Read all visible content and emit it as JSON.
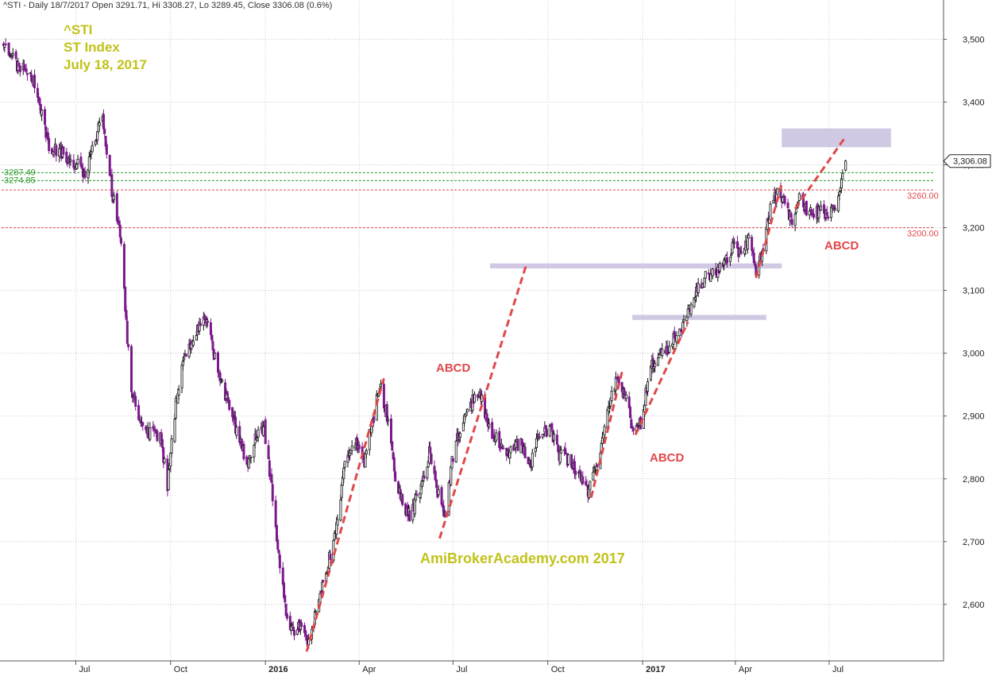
{
  "header": {
    "text": "^STI - Daily 18/7/2017 Open 3291.71, Hi 3308.27, Lo 3289.45, Close 3306.08 (0.6%)"
  },
  "title_block": {
    "line1": "^STI",
    "line2": "ST Index",
    "line3": "July 18, 2017"
  },
  "watermark": "AmiBrokerAcademy.com  2017",
  "colors": {
    "up": "#111111",
    "down": "#7a1a8a",
    "dashed_trend": "#e0484a",
    "zone": "#cfc6e3",
    "green_level": "#2a9a2a",
    "red_level": "#e0484a",
    "grid": "#c8c8c8"
  },
  "chart_data": {
    "type": "candlestick",
    "ylim": [
      2510,
      3560
    ],
    "yticks": [
      2600,
      2700,
      2800,
      2900,
      3000,
      3100,
      3200,
      3300,
      3400,
      3500
    ],
    "ytick_labels": [
      "2,600",
      "2,700",
      "2,800",
      "2,900",
      "3,000",
      "3,100",
      "3,200",
      "3,300",
      "3,400",
      "3,500"
    ],
    "xticks": [
      {
        "label": "Jul",
        "date": "2015-07-01",
        "bold": false
      },
      {
        "label": "Oct",
        "date": "2015-10-01",
        "bold": false
      },
      {
        "label": "2016",
        "date": "2016-01-01",
        "bold": true
      },
      {
        "label": "Apr",
        "date": "2016-04-01",
        "bold": false
      },
      {
        "label": "Jul",
        "date": "2016-07-01",
        "bold": false
      },
      {
        "label": "Oct",
        "date": "2016-10-01",
        "bold": false
      },
      {
        "label": "2017",
        "date": "2017-01-01",
        "bold": true
      },
      {
        "label": "Apr",
        "date": "2017-04-01",
        "bold": false
      },
      {
        "label": "Jul",
        "date": "2017-07-01",
        "bold": false
      }
    ],
    "xlim": [
      "2015-04-20",
      "2017-10-20"
    ],
    "last_price_label": "3,306.08",
    "last_price": 3306.08,
    "levels": [
      {
        "value": 3287.49,
        "label": "3287.49",
        "color": "green",
        "side": "left"
      },
      {
        "value": 3274.85,
        "label": "3274.85",
        "color": "green",
        "side": "left"
      },
      {
        "value": 3260.0,
        "label": "3260.00",
        "color": "red",
        "side": "right"
      },
      {
        "value": 3200.0,
        "label": "3200.00",
        "color": "red",
        "side": "right"
      }
    ],
    "path": [
      [
        "2015-04-22",
        3490
      ],
      [
        "2015-05-05",
        3460
      ],
      [
        "2015-05-18",
        3450
      ],
      [
        "2015-05-28",
        3390
      ],
      [
        "2015-06-05",
        3330
      ],
      [
        "2015-06-15",
        3320
      ],
      [
        "2015-06-25",
        3310
      ],
      [
        "2015-07-03",
        3300
      ],
      [
        "2015-07-10",
        3280
      ],
      [
        "2015-07-20",
        3340
      ],
      [
        "2015-07-27",
        3380
      ],
      [
        "2015-08-05",
        3260
      ],
      [
        "2015-08-14",
        3180
      ],
      [
        "2015-08-20",
        3020
      ],
      [
        "2015-08-25",
        2930
      ],
      [
        "2015-09-01",
        2900
      ],
      [
        "2015-09-08",
        2870
      ],
      [
        "2015-09-15",
        2880
      ],
      [
        "2015-09-22",
        2860
      ],
      [
        "2015-09-28",
        2790
      ],
      [
        "2015-10-06",
        2920
      ],
      [
        "2015-10-14",
        3000
      ],
      [
        "2015-10-22",
        3020
      ],
      [
        "2015-10-29",
        3040
      ],
      [
        "2015-11-05",
        3060
      ],
      [
        "2015-11-12",
        3000
      ],
      [
        "2015-11-20",
        2950
      ],
      [
        "2015-11-30",
        2900
      ],
      [
        "2015-12-07",
        2860
      ],
      [
        "2015-12-14",
        2820
      ],
      [
        "2015-12-22",
        2870
      ],
      [
        "2015-12-31",
        2880
      ],
      [
        "2016-01-08",
        2770
      ],
      [
        "2016-01-14",
        2680
      ],
      [
        "2016-01-21",
        2580
      ],
      [
        "2016-01-28",
        2560
      ],
      [
        "2016-02-05",
        2570
      ],
      [
        "2016-02-12",
        2540
      ],
      [
        "2016-02-22",
        2610
      ],
      [
        "2016-03-01",
        2660
      ],
      [
        "2016-03-10",
        2720
      ],
      [
        "2016-03-18",
        2830
      ],
      [
        "2016-03-28",
        2860
      ],
      [
        "2016-04-06",
        2830
      ],
      [
        "2016-04-15",
        2900
      ],
      [
        "2016-04-21",
        2950
      ],
      [
        "2016-04-28",
        2900
      ],
      [
        "2016-05-06",
        2800
      ],
      [
        "2016-05-13",
        2760
      ],
      [
        "2016-05-20",
        2740
      ],
      [
        "2016-05-30",
        2780
      ],
      [
        "2016-06-08",
        2840
      ],
      [
        "2016-06-16",
        2780
      ],
      [
        "2016-06-24",
        2740
      ],
      [
        "2016-06-30",
        2830
      ],
      [
        "2016-07-08",
        2880
      ],
      [
        "2016-07-18",
        2920
      ],
      [
        "2016-07-27",
        2940
      ],
      [
        "2016-08-05",
        2880
      ],
      [
        "2016-08-15",
        2860
      ],
      [
        "2016-08-25",
        2840
      ],
      [
        "2016-09-05",
        2860
      ],
      [
        "2016-09-14",
        2820
      ],
      [
        "2016-09-22",
        2870
      ],
      [
        "2016-10-03",
        2880
      ],
      [
        "2016-10-12",
        2840
      ],
      [
        "2016-10-21",
        2830
      ],
      [
        "2016-11-01",
        2800
      ],
      [
        "2016-11-10",
        2780
      ],
      [
        "2016-11-18",
        2820
      ],
      [
        "2016-11-28",
        2900
      ],
      [
        "2016-12-06",
        2960
      ],
      [
        "2016-12-14",
        2940
      ],
      [
        "2016-12-22",
        2880
      ],
      [
        "2016-12-30",
        2890
      ],
      [
        "2017-01-09",
        2980
      ],
      [
        "2017-01-18",
        3000
      ],
      [
        "2017-01-27",
        3010
      ],
      [
        "2017-02-06",
        3040
      ],
      [
        "2017-02-14",
        3060
      ],
      [
        "2017-02-22",
        3100
      ],
      [
        "2017-03-03",
        3120
      ],
      [
        "2017-03-13",
        3130
      ],
      [
        "2017-03-22",
        3150
      ],
      [
        "2017-03-31",
        3170
      ],
      [
        "2017-04-07",
        3160
      ],
      [
        "2017-04-14",
        3180
      ],
      [
        "2017-04-21",
        3130
      ],
      [
        "2017-04-28",
        3170
      ],
      [
        "2017-05-05",
        3230
      ],
      [
        "2017-05-12",
        3260
      ],
      [
        "2017-05-19",
        3240
      ],
      [
        "2017-05-26",
        3210
      ],
      [
        "2017-06-02",
        3250
      ],
      [
        "2017-06-09",
        3230
      ],
      [
        "2017-06-16",
        3220
      ],
      [
        "2017-06-23",
        3230
      ],
      [
        "2017-06-30",
        3220
      ],
      [
        "2017-07-07",
        3240
      ],
      [
        "2017-07-13",
        3280
      ],
      [
        "2017-07-18",
        3306
      ]
    ],
    "trend_lines": [
      {
        "from": [
          "2016-02-10",
          2525
        ],
        "to": [
          "2016-04-25",
          2960
        ]
      },
      {
        "from": [
          "2016-06-18",
          2705
        ],
        "to": [
          "2016-09-10",
          3140
        ]
      },
      {
        "from": [
          "2016-11-12",
          2770
        ],
        "to": [
          "2016-12-12",
          2970
        ]
      },
      {
        "from": [
          "2016-12-25",
          2870
        ],
        "to": [
          "2017-02-14",
          3050
        ]
      },
      {
        "from": [
          "2017-04-21",
          3120
        ],
        "to": [
          "2017-05-16",
          3270
        ]
      },
      {
        "from": [
          "2017-05-29",
          3230
        ],
        "to": [
          "2017-07-17",
          3345
        ]
      }
    ],
    "zones": [
      {
        "x0": "2016-08-06",
        "x1": "2017-05-16",
        "y0": 3135,
        "y1": 3143
      },
      {
        "x0": "2016-12-22",
        "x1": "2017-05-01",
        "y0": 3053,
        "y1": 3061
      },
      {
        "x0": "2017-05-16",
        "x1": "2017-08-30",
        "y0": 3328,
        "y1": 3358
      }
    ],
    "annotations": [
      {
        "text": "ABCD"
      },
      {
        "text": "ABCD"
      },
      {
        "text": "ABCD"
      }
    ]
  }
}
